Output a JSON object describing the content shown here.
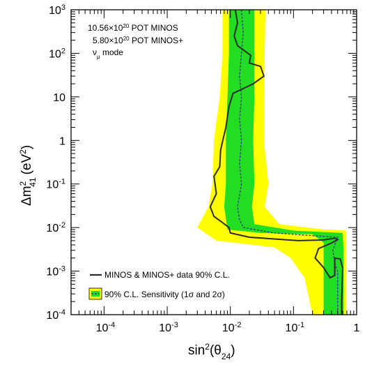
{
  "chart_data": {
    "type": "line",
    "x_scale": "log",
    "y_scale": "log",
    "xlim": [
      3e-05,
      1
    ],
    "ylim": [
      0.0001,
      1000
    ],
    "x_ticks": [
      {
        "value": 0.0001,
        "base": "10",
        "exp": "-4"
      },
      {
        "value": 0.001,
        "base": "10",
        "exp": "-3"
      },
      {
        "value": 0.01,
        "base": "10",
        "exp": "-2"
      },
      {
        "value": 0.1,
        "base": "10",
        "exp": "-1"
      },
      {
        "value": 1,
        "base": "1",
        "exp": ""
      }
    ],
    "y_ticks": [
      {
        "value": 0.0001,
        "base": "10",
        "exp": "-4"
      },
      {
        "value": 0.001,
        "base": "10",
        "exp": "-3"
      },
      {
        "value": 0.01,
        "base": "10",
        "exp": "-2"
      },
      {
        "value": 0.1,
        "base": "10",
        "exp": "-1"
      },
      {
        "value": 1,
        "base": "1",
        "exp": ""
      },
      {
        "value": 10,
        "base": "10",
        "exp": ""
      },
      {
        "value": 100,
        "base": "10",
        "exp": "2"
      },
      {
        "value": 1000,
        "base": "10",
        "exp": "3"
      }
    ],
    "xlabel": {
      "main": "sin",
      "sup": "2",
      "paren_open": "(θ",
      "sub": "24",
      "paren_close": ")"
    },
    "ylabel": {
      "delta": "Δm",
      "sup": "2",
      "sub": "41",
      "unit": "(eV",
      "unit_sup": "2",
      "unit_close": ")"
    },
    "annotations": [
      {
        "pre": "10.56×10",
        "sup": "20",
        "post": " POT MINOS"
      },
      {
        "pre": "5.80×10",
        "sup": "20",
        "post": " POT MINOS+"
      },
      {
        "pre": "ν",
        "sub": "μ",
        "post": " mode"
      }
    ],
    "legend": {
      "placement": "bottom-left",
      "entries": [
        {
          "label": "MINOS & MINOS+ data 90% C.L."
        },
        {
          "label": "90% C.L. Sensitivity (1σ and 2σ)"
        }
      ]
    },
    "colors": {
      "data": "#2b2b2b",
      "sensitivity": "#333388",
      "band_1sigma": "#22dd22",
      "band_2sigma": "#ffff00"
    },
    "series": {
      "data": [
        [
          0.012,
          1000
        ],
        [
          0.013,
          500
        ],
        [
          0.0115,
          250
        ],
        [
          0.013,
          150
        ],
        [
          0.021,
          90
        ],
        [
          0.02,
          60
        ],
        [
          0.03,
          50
        ],
        [
          0.034,
          30
        ],
        [
          0.023,
          20
        ],
        [
          0.011,
          12
        ],
        [
          0.0095,
          6
        ],
        [
          0.0085,
          2
        ],
        [
          0.007,
          0.6
        ],
        [
          0.0068,
          0.25
        ],
        [
          0.0055,
          0.15
        ],
        [
          0.006,
          0.06
        ],
        [
          0.0048,
          0.03
        ],
        [
          0.0055,
          0.018
        ],
        [
          0.0075,
          0.013
        ],
        [
          0.0095,
          0.01
        ],
        [
          0.01,
          0.0075
        ],
        [
          0.02,
          0.006
        ],
        [
          0.12,
          0.005
        ],
        [
          0.3,
          0.0052
        ],
        [
          0.45,
          0.0057
        ],
        [
          0.5,
          0.0053
        ],
        [
          0.4,
          0.0044
        ],
        [
          0.25,
          0.0033
        ],
        [
          0.22,
          0.002
        ],
        [
          0.3,
          0.0012
        ],
        [
          0.38,
          0.0007
        ],
        [
          0.45,
          0.0008
        ],
        [
          0.45,
          0.002
        ],
        [
          0.55,
          0.0019
        ],
        [
          0.6,
          0.0012
        ],
        [
          0.58,
          0.0002
        ],
        [
          0.58,
          0.0001
        ]
      ],
      "sensitivity_median": [
        [
          0.015,
          1000
        ],
        [
          0.016,
          300
        ],
        [
          0.015,
          100
        ],
        [
          0.014,
          30
        ],
        [
          0.015,
          10
        ],
        [
          0.014,
          3
        ],
        [
          0.015,
          1
        ],
        [
          0.014,
          0.3
        ],
        [
          0.015,
          0.1
        ],
        [
          0.013,
          0.03
        ],
        [
          0.014,
          0.015
        ],
        [
          0.016,
          0.01
        ],
        [
          0.05,
          0.0075
        ],
        [
          0.2,
          0.0065
        ],
        [
          0.5,
          0.006
        ],
        [
          0.42,
          0.003
        ],
        [
          0.45,
          0.0015
        ],
        [
          0.5,
          0.001
        ],
        [
          0.5,
          0.0001
        ]
      ],
      "band_1sigma_low": [
        [
          0.0095,
          1000
        ],
        [
          0.0095,
          100
        ],
        [
          0.009,
          10
        ],
        [
          0.0085,
          1
        ],
        [
          0.0085,
          0.1
        ],
        [
          0.008,
          0.03
        ],
        [
          0.009,
          0.009
        ],
        [
          0.03,
          0.0075
        ],
        [
          0.2,
          0.007
        ],
        [
          0.3,
          0.0045
        ],
        [
          0.3,
          0.0005
        ],
        [
          0.3,
          0.0001
        ]
      ],
      "band_1sigma_high": [
        [
          0.024,
          1000
        ],
        [
          0.024,
          100
        ],
        [
          0.024,
          10
        ],
        [
          0.023,
          1
        ],
        [
          0.024,
          0.1
        ],
        [
          0.022,
          0.03
        ],
        [
          0.024,
          0.012
        ],
        [
          0.1,
          0.0085
        ],
        [
          0.6,
          0.0075
        ],
        [
          0.62,
          0.003
        ],
        [
          0.62,
          0.0005
        ],
        [
          0.62,
          0.0001
        ]
      ],
      "band_2sigma_low": [
        [
          0.0075,
          1000
        ],
        [
          0.0075,
          100
        ],
        [
          0.0068,
          10
        ],
        [
          0.0055,
          1
        ],
        [
          0.0052,
          0.1
        ],
        [
          0.0045,
          0.03
        ],
        [
          0.003,
          0.01
        ],
        [
          0.006,
          0.005
        ],
        [
          0.05,
          0.0035
        ],
        [
          0.09,
          0.002
        ],
        [
          0.15,
          0.0007
        ],
        [
          0.2,
          0.0001
        ]
      ],
      "band_2sigma_high": [
        [
          0.036,
          1000
        ],
        [
          0.035,
          100
        ],
        [
          0.034,
          10
        ],
        [
          0.034,
          1
        ],
        [
          0.04,
          0.1
        ],
        [
          0.035,
          0.03
        ],
        [
          0.06,
          0.012
        ],
        [
          0.3,
          0.009
        ],
        [
          0.68,
          0.0085
        ],
        [
          0.68,
          0.003
        ],
        [
          0.68,
          0.0005
        ],
        [
          0.68,
          0.0001
        ]
      ]
    }
  }
}
